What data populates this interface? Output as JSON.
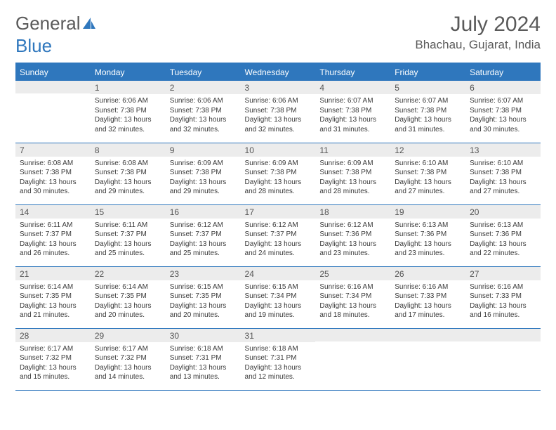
{
  "brand": {
    "part1": "General",
    "part2": "Blue"
  },
  "title": "July 2024",
  "location": "Bhachau, Gujarat, India",
  "colors": {
    "header_bg": "#2f77bd",
    "header_text": "#ffffff",
    "daynum_bg": "#ececec",
    "text": "#3a3a3a",
    "border": "#2f77bd"
  },
  "weekdays": [
    "Sunday",
    "Monday",
    "Tuesday",
    "Wednesday",
    "Thursday",
    "Friday",
    "Saturday"
  ],
  "weeks": [
    [
      {
        "n": "",
        "sr": "",
        "ss": "",
        "dl": ""
      },
      {
        "n": "1",
        "sr": "6:06 AM",
        "ss": "7:38 PM",
        "dl": "13 hours and 32 minutes."
      },
      {
        "n": "2",
        "sr": "6:06 AM",
        "ss": "7:38 PM",
        "dl": "13 hours and 32 minutes."
      },
      {
        "n": "3",
        "sr": "6:06 AM",
        "ss": "7:38 PM",
        "dl": "13 hours and 32 minutes."
      },
      {
        "n": "4",
        "sr": "6:07 AM",
        "ss": "7:38 PM",
        "dl": "13 hours and 31 minutes."
      },
      {
        "n": "5",
        "sr": "6:07 AM",
        "ss": "7:38 PM",
        "dl": "13 hours and 31 minutes."
      },
      {
        "n": "6",
        "sr": "6:07 AM",
        "ss": "7:38 PM",
        "dl": "13 hours and 30 minutes."
      }
    ],
    [
      {
        "n": "7",
        "sr": "6:08 AM",
        "ss": "7:38 PM",
        "dl": "13 hours and 30 minutes."
      },
      {
        "n": "8",
        "sr": "6:08 AM",
        "ss": "7:38 PM",
        "dl": "13 hours and 29 minutes."
      },
      {
        "n": "9",
        "sr": "6:09 AM",
        "ss": "7:38 PM",
        "dl": "13 hours and 29 minutes."
      },
      {
        "n": "10",
        "sr": "6:09 AM",
        "ss": "7:38 PM",
        "dl": "13 hours and 28 minutes."
      },
      {
        "n": "11",
        "sr": "6:09 AM",
        "ss": "7:38 PM",
        "dl": "13 hours and 28 minutes."
      },
      {
        "n": "12",
        "sr": "6:10 AM",
        "ss": "7:38 PM",
        "dl": "13 hours and 27 minutes."
      },
      {
        "n": "13",
        "sr": "6:10 AM",
        "ss": "7:38 PM",
        "dl": "13 hours and 27 minutes."
      }
    ],
    [
      {
        "n": "14",
        "sr": "6:11 AM",
        "ss": "7:37 PM",
        "dl": "13 hours and 26 minutes."
      },
      {
        "n": "15",
        "sr": "6:11 AM",
        "ss": "7:37 PM",
        "dl": "13 hours and 25 minutes."
      },
      {
        "n": "16",
        "sr": "6:12 AM",
        "ss": "7:37 PM",
        "dl": "13 hours and 25 minutes."
      },
      {
        "n": "17",
        "sr": "6:12 AM",
        "ss": "7:37 PM",
        "dl": "13 hours and 24 minutes."
      },
      {
        "n": "18",
        "sr": "6:12 AM",
        "ss": "7:36 PM",
        "dl": "13 hours and 23 minutes."
      },
      {
        "n": "19",
        "sr": "6:13 AM",
        "ss": "7:36 PM",
        "dl": "13 hours and 23 minutes."
      },
      {
        "n": "20",
        "sr": "6:13 AM",
        "ss": "7:36 PM",
        "dl": "13 hours and 22 minutes."
      }
    ],
    [
      {
        "n": "21",
        "sr": "6:14 AM",
        "ss": "7:35 PM",
        "dl": "13 hours and 21 minutes."
      },
      {
        "n": "22",
        "sr": "6:14 AM",
        "ss": "7:35 PM",
        "dl": "13 hours and 20 minutes."
      },
      {
        "n": "23",
        "sr": "6:15 AM",
        "ss": "7:35 PM",
        "dl": "13 hours and 20 minutes."
      },
      {
        "n": "24",
        "sr": "6:15 AM",
        "ss": "7:34 PM",
        "dl": "13 hours and 19 minutes."
      },
      {
        "n": "25",
        "sr": "6:16 AM",
        "ss": "7:34 PM",
        "dl": "13 hours and 18 minutes."
      },
      {
        "n": "26",
        "sr": "6:16 AM",
        "ss": "7:33 PM",
        "dl": "13 hours and 17 minutes."
      },
      {
        "n": "27",
        "sr": "6:16 AM",
        "ss": "7:33 PM",
        "dl": "13 hours and 16 minutes."
      }
    ],
    [
      {
        "n": "28",
        "sr": "6:17 AM",
        "ss": "7:32 PM",
        "dl": "13 hours and 15 minutes."
      },
      {
        "n": "29",
        "sr": "6:17 AM",
        "ss": "7:32 PM",
        "dl": "13 hours and 14 minutes."
      },
      {
        "n": "30",
        "sr": "6:18 AM",
        "ss": "7:31 PM",
        "dl": "13 hours and 13 minutes."
      },
      {
        "n": "31",
        "sr": "6:18 AM",
        "ss": "7:31 PM",
        "dl": "13 hours and 12 minutes."
      },
      {
        "n": "",
        "sr": "",
        "ss": "",
        "dl": ""
      },
      {
        "n": "",
        "sr": "",
        "ss": "",
        "dl": ""
      },
      {
        "n": "",
        "sr": "",
        "ss": "",
        "dl": ""
      }
    ]
  ],
  "labels": {
    "sunrise": "Sunrise:",
    "sunset": "Sunset:",
    "daylight": "Daylight:"
  }
}
